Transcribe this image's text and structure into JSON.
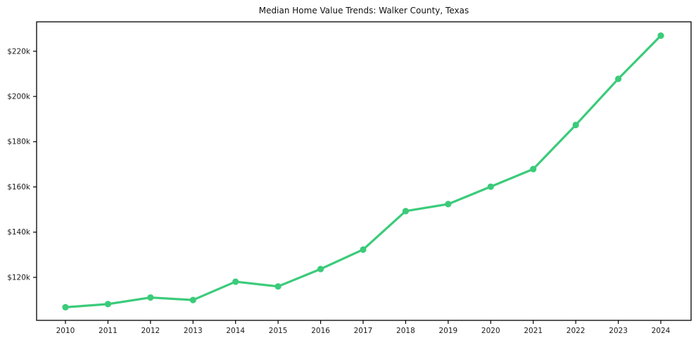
{
  "chart_data": {
    "type": "line",
    "title": "Median Home Value Trends: Walker County, Texas",
    "x": [
      2010,
      2011,
      2012,
      2013,
      2014,
      2015,
      2016,
      2017,
      2018,
      2019,
      2020,
      2021,
      2022,
      2023,
      2024
    ],
    "series": [
      {
        "name": "Median Home Value",
        "values": [
          106800,
          108200,
          111100,
          110000,
          118100,
          116000,
          123700,
          132300,
          149300,
          152400,
          160100,
          167900,
          187400,
          207800,
          226900
        ]
      }
    ],
    "xlabel": "",
    "ylabel": "",
    "ylim": [
      101000,
      233000
    ],
    "y_ticks": [
      {
        "value": 120000,
        "label": "$120k"
      },
      {
        "value": 140000,
        "label": "$140k"
      },
      {
        "value": 160000,
        "label": "$160k"
      },
      {
        "value": 180000,
        "label": "$180k"
      },
      {
        "value": 200000,
        "label": "$200k"
      },
      {
        "value": 220000,
        "label": "$220k"
      }
    ],
    "grid": false,
    "legend_position": "none",
    "marker": "circle",
    "colors": {
      "line": "#3bcb7a",
      "marker": "#3bcb7a",
      "axis": "#000000",
      "tick_label": "#1a1a1a",
      "background": "#ffffff"
    }
  }
}
